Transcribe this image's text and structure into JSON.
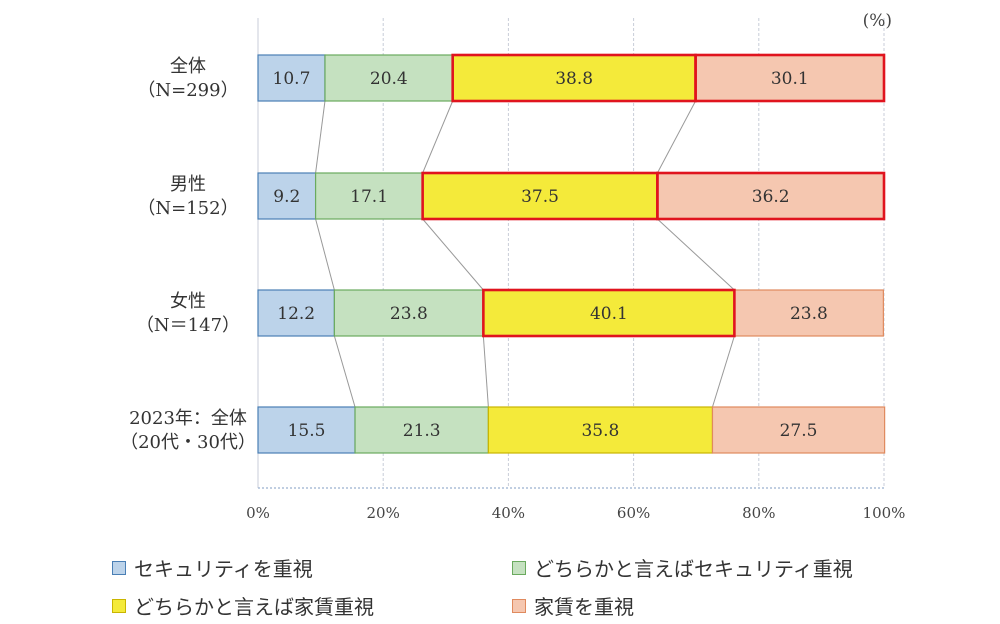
{
  "chart_data": {
    "type": "bar",
    "orientation": "horizontal",
    "stacked": "percent",
    "unit_label": "(%)",
    "categories": [
      {
        "line1": "全体",
        "line2": "（N=299）"
      },
      {
        "line1": "男性",
        "line2": "（N=152）"
      },
      {
        "line1": "女性",
        "line2": "（N＝147）"
      },
      {
        "line1": "2023年：全体",
        "line2": "（20代・30代）"
      }
    ],
    "series": [
      {
        "name": "セキュリティを重視",
        "color": "#bcd3ea",
        "edge": "#4a7fb5",
        "values": [
          10.7,
          9.2,
          12.2,
          15.5
        ]
      },
      {
        "name": "どちらかと言えばセキュリティ重視",
        "color": "#c5e1c0",
        "edge": "#6aaa5e",
        "values": [
          20.4,
          17.1,
          23.8,
          21.3
        ]
      },
      {
        "name": "どちらかと言えば家賃重視",
        "color": "#f4ea3a",
        "edge": "#c9b500",
        "values": [
          38.8,
          37.5,
          40.1,
          35.8
        ]
      },
      {
        "name": "家賃を重視",
        "color": "#f5c7b0",
        "edge": "#e08a5e",
        "values": [
          30.1,
          36.2,
          23.8,
          27.5
        ]
      }
    ],
    "highlight": {
      "color": "#e0141e",
      "rows": [
        [
          0,
          2
        ],
        [
          0,
          2
        ],
        [
          2,
          2
        ]
      ],
      "note": "red outline around selected segments"
    },
    "xlim": [
      0,
      100
    ],
    "xticks": [
      "0%",
      "20%",
      "40%",
      "60%",
      "80%",
      "100%"
    ],
    "grid": "vertical-dashed",
    "legend_position": "bottom",
    "legend": [
      "セキュリティを重視",
      "どちらかと言えばセキュリティ重視",
      "どちらかと言えば家賃重視",
      "家賃を重視"
    ]
  }
}
